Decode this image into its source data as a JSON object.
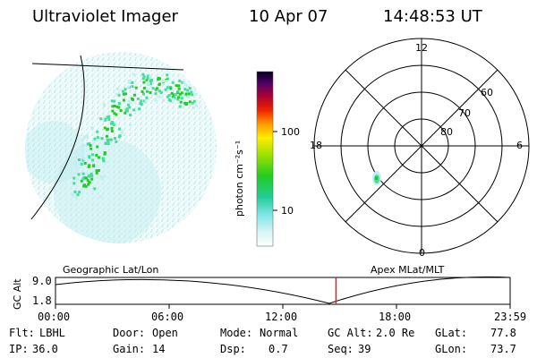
{
  "header": {
    "title": "Ultraviolet Imager",
    "date": "10 Apr 07",
    "time": "14:48:53 UT"
  },
  "colorbar": {
    "label": "photon cm⁻²s⁻¹",
    "ticks": [
      "100",
      "10"
    ]
  },
  "polar": {
    "mlt_labels": [
      "12",
      "18",
      "6",
      "0"
    ],
    "lat_labels": [
      "60",
      "70",
      "80"
    ]
  },
  "timeline": {
    "left_title": "Geographic Lat/Lon",
    "right_title": "Apex MLat/MLT",
    "y_axis_label": "GC Alt",
    "y_ticks": [
      "9.0",
      "1.8"
    ],
    "x_ticks": [
      "00:00",
      "06:00",
      "12:00",
      "18:00",
      "23:59"
    ],
    "current_time_fraction": 0.617
  },
  "status": {
    "row1": [
      {
        "label": "Flt:",
        "value": "LBHL"
      },
      {
        "label": "Door:",
        "value": "Open"
      },
      {
        "label": "Mode:",
        "value": "Normal"
      },
      {
        "label": "GC Alt:",
        "value": "2.0 Re"
      },
      {
        "label": "GLat:",
        "value": "77.8"
      }
    ],
    "row2": [
      {
        "label": "IP:",
        "value": "36.0"
      },
      {
        "label": "Gain:",
        "value": "14"
      },
      {
        "label": "Dsp:",
        "value": "0.7"
      },
      {
        "label": "Seq:",
        "value": "39"
      },
      {
        "label": "GLon:",
        "value": "73.7"
      }
    ]
  },
  "colors": {
    "aurora_core": "#22cc22",
    "aurora_edge": "#44dd99",
    "noise": "#bfeff0",
    "marker": "#e02020"
  }
}
